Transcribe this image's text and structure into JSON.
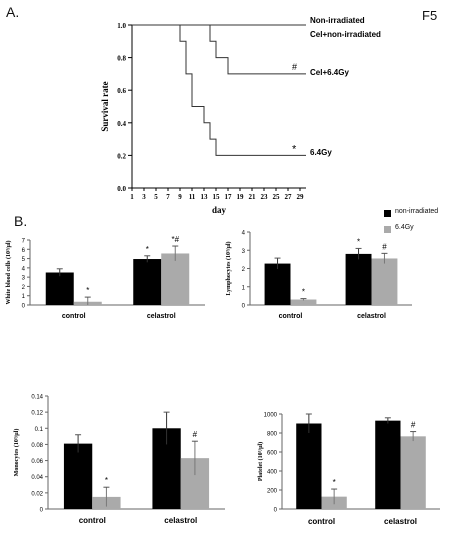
{
  "figure": {
    "panel_a_label": "A.",
    "panel_b_label": "B.",
    "figure_id": "F5"
  },
  "legend": {
    "items": [
      {
        "label": "non-irradiated",
        "color": "#000000"
      },
      {
        "label": "6.4Gy",
        "color": "#aaaaaa"
      }
    ]
  },
  "chart_data": [
    {
      "type": "line",
      "step": true,
      "xlabel": "day",
      "ylabel": "Survival rate",
      "xticks": [
        1,
        3,
        5,
        7,
        9,
        11,
        13,
        15,
        17,
        19,
        21,
        23,
        25,
        27,
        29
      ],
      "xlim": [
        1,
        30
      ],
      "ylim": [
        0,
        1.0
      ],
      "yticks": [
        "0.0",
        "0.2",
        "0.4",
        "0.6",
        "0.8",
        "1.0"
      ],
      "series": [
        {
          "name": "Non-irradiated",
          "x": [
            1,
            30
          ],
          "y": [
            1.0,
            1.0
          ]
        },
        {
          "name": "Cel+non-irradiated",
          "x": [
            1,
            30
          ],
          "y": [
            1.0,
            1.0
          ]
        },
        {
          "name": "Cel+6.4Gy",
          "x": [
            1,
            14,
            15,
            17,
            30
          ],
          "y": [
            1.0,
            0.9,
            0.8,
            0.7,
            0.7
          ],
          "mark": "#"
        },
        {
          "name": "6.4Gy",
          "x": [
            1,
            9,
            10,
            11,
            13,
            14,
            15,
            30
          ],
          "y": [
            1.0,
            0.9,
            0.7,
            0.5,
            0.4,
            0.3,
            0.2,
            0.2
          ],
          "mark": "*"
        }
      ]
    },
    {
      "type": "bar",
      "ylabel": "White blood cells (10³/μl)",
      "categories": [
        "control",
        "celastrol"
      ],
      "ylim": [
        0,
        7
      ],
      "yticks": [
        0,
        1,
        2,
        3,
        4,
        5,
        6,
        7
      ],
      "series": [
        {
          "name": "non-irradiated",
          "values": [
            3.5,
            4.95
          ],
          "errors": [
            0.4,
            0.35
          ],
          "marks": [
            "",
            "*"
          ]
        },
        {
          "name": "6.4Gy",
          "values": [
            0.35,
            5.55
          ],
          "errors": [
            0.5,
            0.8
          ],
          "marks": [
            "*",
            "*#"
          ]
        }
      ]
    },
    {
      "type": "bar",
      "ylabel": "Lymphocytes (10³/μl)",
      "categories": [
        "control",
        "celastrol"
      ],
      "ylim": [
        0,
        4
      ],
      "yticks": [
        0,
        1,
        2,
        3,
        4
      ],
      "series": [
        {
          "name": "non-irradiated",
          "values": [
            2.27,
            2.8
          ],
          "errors": [
            0.3,
            0.3
          ],
          "marks": [
            "",
            "*"
          ]
        },
        {
          "name": "6.4Gy",
          "values": [
            0.3,
            2.55
          ],
          "errors": [
            0.05,
            0.28
          ],
          "marks": [
            "*",
            "#"
          ]
        }
      ]
    },
    {
      "type": "bar",
      "ylabel": "Monocytes (10³/μl)",
      "categories": [
        "control",
        "celastrol"
      ],
      "ylim": [
        0,
        0.14
      ],
      "yticks": [
        0,
        0.02,
        0.04,
        0.06,
        0.08,
        0.1,
        0.12,
        0.14
      ],
      "series": [
        {
          "name": "non-irradiated",
          "values": [
            0.081,
            0.1
          ],
          "errors": [
            0.011,
            0.02
          ],
          "marks": [
            "",
            ""
          ]
        },
        {
          "name": "6.4Gy",
          "values": [
            0.015,
            0.063
          ],
          "errors": [
            0.012,
            0.021
          ],
          "marks": [
            "*",
            "#"
          ]
        }
      ]
    },
    {
      "type": "bar",
      "ylabel": "Platelet (10³/μl)",
      "categories": [
        "control",
        "celastrol"
      ],
      "ylim": [
        0,
        1000
      ],
      "yticks": [
        0,
        200,
        400,
        600,
        800,
        1000
      ],
      "series": [
        {
          "name": "non-irradiated",
          "values": [
            900,
            930
          ],
          "errors": [
            100,
            30
          ],
          "marks": [
            "",
            ""
          ]
        },
        {
          "name": "6.4Gy",
          "values": [
            130,
            765
          ],
          "errors": [
            80,
            50
          ],
          "marks": [
            "*",
            "#"
          ]
        }
      ]
    }
  ]
}
